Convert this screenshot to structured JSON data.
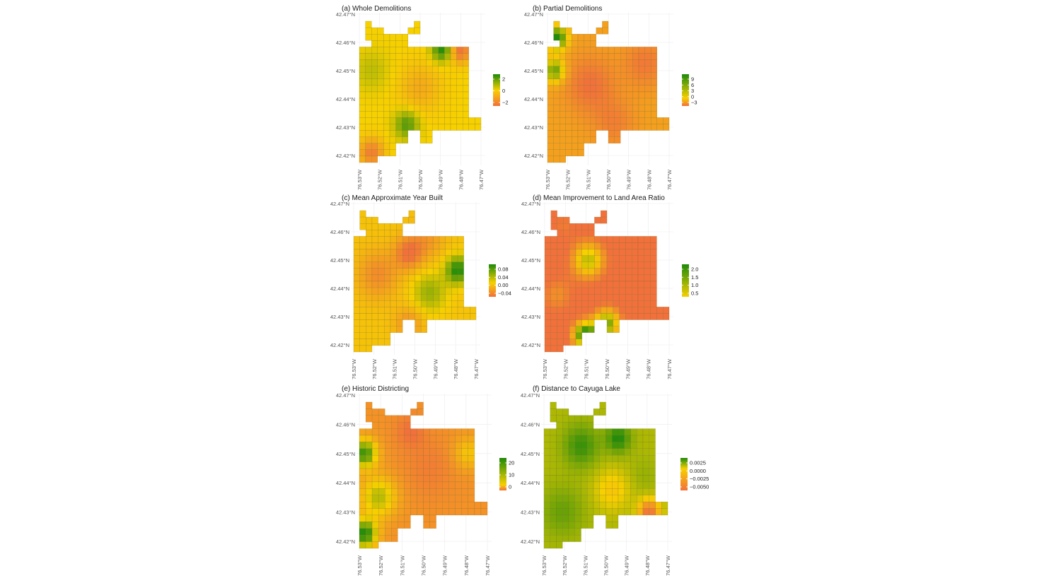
{
  "colors": {
    "low": "#f2703b",
    "mid": "#f7d000",
    "high": "#1e8a0a"
  },
  "chart_data": [
    {
      "type": "heatmap",
      "title": "(a) Whole Demolitions",
      "y_ticks": [
        "42.47°N",
        "42.46°N",
        "42.45°N",
        "42.44°N",
        "42.43°N",
        "42.42°N"
      ],
      "x_ticks": [
        "76.53°W",
        "76.52°W",
        "76.51°W",
        "76.50°W",
        "76.49°W",
        "76.48°W",
        "76.47°W"
      ],
      "legend_ticks": [
        "2",
        "0",
        "−2"
      ],
      "value_range": [
        -3,
        3
      ],
      "hotspots": [
        {
          "x": 0.68,
          "y": 0.2,
          "value": 3.0,
          "spread": 0.06
        },
        {
          "x": 0.83,
          "y": 0.21,
          "value": -3.0,
          "spread": 0.06
        },
        {
          "x": 0.39,
          "y": 0.73,
          "value": 2.3,
          "spread": 0.07
        },
        {
          "x": 0.1,
          "y": 0.93,
          "value": -2.6,
          "spread": 0.07
        },
        {
          "x": 0.5,
          "y": 0.47,
          "value": -1.2,
          "spread": 0.12
        },
        {
          "x": 0.1,
          "y": 0.35,
          "value": 0.8,
          "spread": 0.1
        }
      ]
    },
    {
      "type": "heatmap",
      "title": "(b) Partial Demolitions",
      "y_ticks": [
        "42.47°N",
        "42.46°N",
        "42.45°N",
        "42.44°N",
        "42.43°N",
        "42.42°N"
      ],
      "x_ticks": [
        "76.53°W",
        "76.52°W",
        "76.51°W",
        "76.50°W",
        "76.49°W",
        "76.48°W",
        "76.47°W"
      ],
      "legend_ticks": [
        "9",
        "6",
        "3",
        "0",
        "−3"
      ],
      "value_range": [
        -3,
        9
      ],
      "hotspots": [
        {
          "x": 0.08,
          "y": 0.12,
          "value": 9.0,
          "spread": 0.06
        },
        {
          "x": 0.06,
          "y": 0.35,
          "value": 7.0,
          "spread": 0.06
        },
        {
          "x": 0.35,
          "y": 0.45,
          "value": -3.0,
          "spread": 0.14
        },
        {
          "x": 0.8,
          "y": 0.3,
          "value": -2.5,
          "spread": 0.12
        },
        {
          "x": 0.55,
          "y": 0.72,
          "value": -2.0,
          "spread": 0.12
        }
      ]
    },
    {
      "type": "heatmap",
      "title": "(c) Mean Approximate Year Built",
      "y_ticks": [
        "42.47°N",
        "42.46°N",
        "42.45°N",
        "42.44°N",
        "42.43°N",
        "42.42°N"
      ],
      "x_ticks": [
        "76.53°W",
        "76.52°W",
        "76.51°W",
        "76.50°W",
        "76.49°W",
        "76.48°W",
        "76.47°W"
      ],
      "legend_ticks": [
        "0.08",
        "0.04",
        "0.00",
        "−0.04"
      ],
      "value_range": [
        -0.06,
        0.08
      ],
      "hotspots": [
        {
          "x": 0.85,
          "y": 0.42,
          "value": 0.08,
          "spread": 0.07
        },
        {
          "x": 0.62,
          "y": 0.58,
          "value": 0.04,
          "spread": 0.1
        },
        {
          "x": 0.45,
          "y": 0.3,
          "value": -0.06,
          "spread": 0.08
        },
        {
          "x": 0.2,
          "y": 0.45,
          "value": -0.04,
          "spread": 0.12
        },
        {
          "x": 0.6,
          "y": 0.2,
          "value": -0.03,
          "spread": 0.1
        },
        {
          "x": 0.45,
          "y": 0.8,
          "value": -0.035,
          "spread": 0.08
        }
      ]
    },
    {
      "type": "heatmap",
      "title": "(d) Mean Improvement to Land Area Ratio",
      "y_ticks": [
        "42.47°N",
        "42.46°N",
        "42.45°N",
        "42.44°N",
        "42.43°N",
        "42.42°N"
      ],
      "x_ticks": [
        "76.53°W",
        "76.52°W",
        "76.51°W",
        "76.50°W",
        "76.49°W",
        "76.48°W",
        "76.47°W"
      ],
      "legend_ticks": [
        "2.0",
        "1.5",
        "1.0",
        "0.5"
      ],
      "value_range": [
        0.3,
        2.2
      ],
      "hotspots": [
        {
          "x": 0.32,
          "y": 0.88,
          "value": 2.2,
          "spread": 0.07
        },
        {
          "x": 0.5,
          "y": 0.8,
          "value": 1.8,
          "spread": 0.08
        },
        {
          "x": 0.35,
          "y": 0.35,
          "value": 1.5,
          "spread": 0.1
        },
        {
          "x": 0.75,
          "y": 0.5,
          "value": 0.3,
          "spread": 0.12
        },
        {
          "x": 0.15,
          "y": 0.1,
          "value": 0.4,
          "spread": 0.08
        },
        {
          "x": 0.1,
          "y": 0.6,
          "value": 0.6,
          "spread": 0.1
        }
      ]
    },
    {
      "type": "heatmap",
      "title": "(e) Historic Districting",
      "y_ticks": [
        "42.47°N",
        "42.46°N",
        "42.45°N",
        "42.44°N",
        "42.43°N",
        "42.42°N"
      ],
      "x_ticks": [
        "76.53°W",
        "76.52°W",
        "76.51°W",
        "76.50°W",
        "76.49°W",
        "76.48°W",
        "76.47°W"
      ],
      "legend_ticks": [
        "20",
        "10",
        "0"
      ],
      "value_range": [
        -5,
        24
      ],
      "hotspots": [
        {
          "x": 0.04,
          "y": 0.9,
          "value": 24.0,
          "spread": 0.07
        },
        {
          "x": 0.04,
          "y": 0.35,
          "value": 22.0,
          "spread": 0.07
        },
        {
          "x": 0.15,
          "y": 0.65,
          "value": 14.0,
          "spread": 0.1
        },
        {
          "x": 0.4,
          "y": 0.2,
          "value": -5.0,
          "spread": 0.08
        },
        {
          "x": 0.55,
          "y": 0.45,
          "value": -3.0,
          "spread": 0.14
        },
        {
          "x": 0.85,
          "y": 0.35,
          "value": 8.0,
          "spread": 0.08
        }
      ]
    },
    {
      "type": "heatmap",
      "title": "(f) Distance to Cayuga Lake",
      "y_ticks": [
        "42.47°N",
        "42.46°N",
        "42.45°N",
        "42.44°N",
        "42.43°N",
        "42.42°N"
      ],
      "x_ticks": [
        "76.53°W",
        "76.52°W",
        "76.51°W",
        "76.50°W",
        "76.49°W",
        "76.48°W",
        "76.47°W"
      ],
      "legend_ticks": [
        "0.0025",
        "0.0000",
        "−0.0025",
        "−0.0050"
      ],
      "value_range": [
        -0.006,
        0.003
      ],
      "hotspots": [
        {
          "x": 0.6,
          "y": 0.25,
          "value": 0.003,
          "spread": 0.07
        },
        {
          "x": 0.3,
          "y": 0.3,
          "value": 0.0025,
          "spread": 0.1
        },
        {
          "x": 0.15,
          "y": 0.75,
          "value": 0.0015,
          "spread": 0.12
        },
        {
          "x": 0.55,
          "y": 0.6,
          "value": -0.002,
          "spread": 0.1
        },
        {
          "x": 0.85,
          "y": 0.75,
          "value": -0.006,
          "spread": 0.06
        },
        {
          "x": 0.8,
          "y": 0.5,
          "value": 0.0005,
          "spread": 0.08
        }
      ]
    }
  ]
}
